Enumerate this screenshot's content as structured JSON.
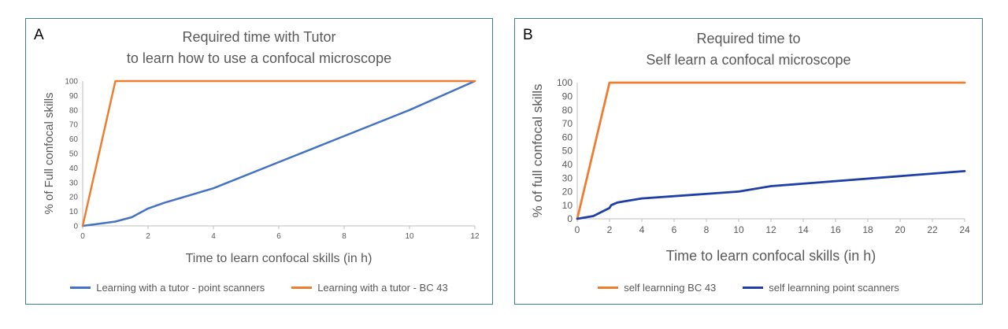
{
  "colors": {
    "orange": "#ED7D31",
    "blueA": "#4472C4",
    "blueB": "#1F3FA8",
    "axis": "#bfbfbf",
    "text": "#595959",
    "border": "#3b7f8c"
  },
  "chart_data": [
    {
      "type": "line",
      "panel_label": "A",
      "title_lines": [
        "Required time with Tutor",
        "to learn how to use a confocal microscope"
      ],
      "xlabel": "Time to learn confocal skills (in h)",
      "ylabel": "% of  Full confocal skills",
      "xlim": [
        0,
        12
      ],
      "ylim": [
        0,
        100
      ],
      "xticks": [
        "0",
        "2",
        "4",
        "6",
        "8",
        "10",
        "12"
      ],
      "yticks": [
        "0",
        "10",
        "20",
        "30",
        "40",
        "50",
        "60",
        "70",
        "80",
        "90",
        "100"
      ],
      "grid": false,
      "legend_position": "bottom",
      "series": [
        {
          "name": "Learning with a tutor - point scanners",
          "color": "#4472C4",
          "x": [
            0,
            1,
            1.5,
            2,
            2.5,
            4,
            6,
            8,
            10,
            12
          ],
          "y": [
            0,
            3,
            6,
            12,
            16,
            26,
            44,
            62,
            80,
            100
          ]
        },
        {
          "name": "Learning with a tutor - BC 43",
          "color": "#ED7D31",
          "x": [
            0,
            1,
            12
          ],
          "y": [
            0,
            100,
            100
          ]
        }
      ]
    },
    {
      "type": "line",
      "panel_label": "B",
      "title_lines": [
        "Required time to",
        "Self learn a confocal microscope"
      ],
      "xlabel": "Time to learn confocal skills (in h)",
      "ylabel": "% of full confocal  skills",
      "xlim": [
        0,
        24
      ],
      "ylim": [
        0,
        100
      ],
      "xticks": [
        "0",
        "2",
        "4",
        "6",
        "8",
        "10",
        "12",
        "14",
        "16",
        "18",
        "20",
        "22",
        "24"
      ],
      "yticks": [
        "0",
        "10",
        "20",
        "30",
        "40",
        "50",
        "60",
        "70",
        "80",
        "90",
        "100"
      ],
      "grid": false,
      "legend_position": "bottom",
      "series": [
        {
          "name": "self learnning BC 43",
          "color": "#ED7D31",
          "x": [
            0,
            2,
            24
          ],
          "y": [
            0,
            100,
            100
          ]
        },
        {
          "name": "self learnning point scanners",
          "color": "#1F3FA8",
          "x": [
            0,
            1,
            2,
            2.1,
            2.5,
            4,
            10,
            12,
            24
          ],
          "y": [
            0,
            2,
            8,
            10,
            12,
            15,
            20,
            24,
            35
          ]
        }
      ]
    }
  ]
}
